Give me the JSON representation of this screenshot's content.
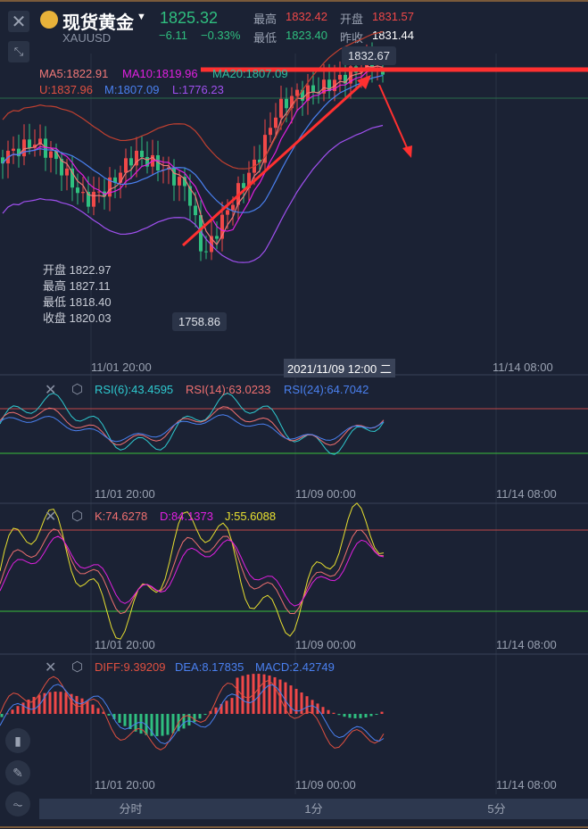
{
  "header": {
    "title": "现货黄金",
    "symbol": "XAUUSD",
    "price": "1825.32",
    "change": "−6.11",
    "change_pct": "−0.33%",
    "high_label": "最高",
    "high": "1832.42",
    "open_label": "开盘",
    "open": "1831.57",
    "low_label": "最低",
    "low": "1823.40",
    "prev_close_label": "昨收",
    "prev_close": "1831.44"
  },
  "main": {
    "ma5": "MA5:1822.91",
    "ma10": "MA10:1819.96",
    "ma20": "MA20:1807.09",
    "u": "U:1837.96",
    "m": "M:1807.09",
    "l": "L:1776.23",
    "max_tip": "1832.67",
    "min_tip": "1758.86",
    "ohlc": {
      "open": "开盘 1822.97",
      "high": "最高 1827.11",
      "low": "最低 1818.40",
      "close": "收盘 1820.03"
    },
    "crosshair_time": "2021/11/09 12:00 二",
    "xaxis": [
      "11/01 20:00",
      "11/14 08:00"
    ]
  },
  "rsi": {
    "rsi6": "RSI(6):43.4595",
    "rsi14": "RSI(14):63.0233",
    "rsi24": "RSI(24):64.7042",
    "xaxis": [
      "11/01 20:00",
      "11/09 00:00",
      "11/14 08:00"
    ]
  },
  "kdj": {
    "k": "K:74.6278",
    "d": "D:84.1373",
    "j": "J:55.6088",
    "xaxis": [
      "11/01 20:00",
      "11/09 00:00",
      "11/14 08:00"
    ]
  },
  "macd": {
    "diff": "DIFF:9.39209",
    "dea": "DEA:8.17835",
    "macd": "MACD:2.42749",
    "xaxis": [
      "11/01 20:00",
      "11/09 00:00",
      "11/14 08:00"
    ]
  },
  "tabs": [
    "分时",
    "1分",
    "5分"
  ],
  "colors": {
    "up": "#f04848",
    "down": "#2fbf7f",
    "bg": "#1b2234",
    "accent_red": "#ff3030"
  }
}
